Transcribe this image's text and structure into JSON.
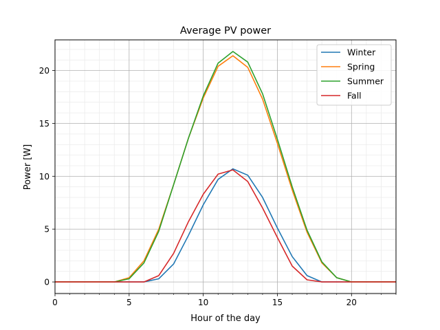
{
  "chart_data": {
    "type": "line",
    "title": "Average PV power",
    "xlabel": "Hour of the day",
    "ylabel": "Power [W]",
    "xlim": [
      0,
      23
    ],
    "ylim": [
      -1.1,
      22.9
    ],
    "x_ticks": [
      0,
      5,
      10,
      15,
      20
    ],
    "y_ticks": [
      0,
      5,
      10,
      15,
      20
    ],
    "x_tick_labels": [
      "0",
      "5",
      "10",
      "15",
      "20"
    ],
    "y_tick_labels": [
      "0",
      "5",
      "10",
      "15",
      "20"
    ],
    "grid": true,
    "legend_position": "top-right",
    "x": [
      0,
      1,
      2,
      3,
      4,
      5,
      6,
      7,
      8,
      9,
      10,
      11,
      12,
      13,
      14,
      15,
      16,
      17,
      18,
      19,
      20,
      21,
      22,
      23
    ],
    "series": [
      {
        "name": "Winter",
        "color": "#1f77b4",
        "values": [
          0,
          0,
          0,
          0,
          0,
          0,
          0,
          0.3,
          1.7,
          4.4,
          7.3,
          9.7,
          10.7,
          10.1,
          8.0,
          5.1,
          2.4,
          0.6,
          0,
          0,
          0,
          0,
          0,
          0
        ]
      },
      {
        "name": "Spring",
        "color": "#ff7f0e",
        "values": [
          0,
          0,
          0,
          0,
          0,
          0.4,
          2.0,
          5.0,
          9.2,
          13.6,
          17.4,
          20.4,
          21.4,
          20.3,
          17.3,
          13.1,
          8.7,
          4.7,
          1.8,
          0.4,
          0,
          0,
          0,
          0
        ]
      },
      {
        "name": "Summer",
        "color": "#2ca02c",
        "values": [
          0,
          0,
          0,
          0,
          0,
          0.3,
          1.8,
          4.8,
          9.2,
          13.6,
          17.6,
          20.7,
          21.8,
          20.8,
          17.8,
          13.5,
          9.0,
          4.9,
          1.9,
          0.4,
          0,
          0,
          0,
          0
        ]
      },
      {
        "name": "Fall",
        "color": "#d62728",
        "values": [
          0,
          0,
          0,
          0,
          0,
          0,
          0,
          0.6,
          2.7,
          5.7,
          8.3,
          10.2,
          10.6,
          9.5,
          7.0,
          4.2,
          1.5,
          0.2,
          0,
          0,
          0,
          0,
          0,
          0
        ]
      }
    ]
  }
}
